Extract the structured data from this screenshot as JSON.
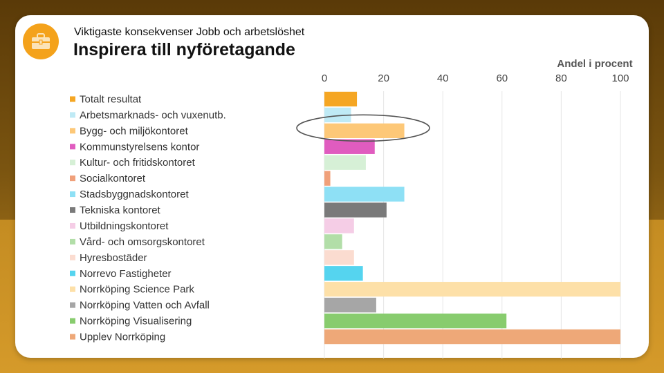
{
  "header": {
    "subtitle": "Viktigaste konsekvenser Jobb och arbetslöshet",
    "title": "Inspirera till nyföretagande",
    "badge_icon": "briefcase-icon"
  },
  "colors": {
    "badge": "#f4a21b",
    "highlight_ellipse": "#555555",
    "gridline": "#e6e6e6"
  },
  "chart_data": {
    "type": "bar",
    "orientation": "horizontal",
    "title": "Inspirera till nyföretagande",
    "xlabel": "Andel i procent",
    "ylabel": "",
    "xlim": [
      0,
      100
    ],
    "xticks": [
      0,
      20,
      40,
      60,
      80,
      100
    ],
    "grid": true,
    "legend_position": "left",
    "highlighted_category": "Bygg- och miljökontoret",
    "categories": [
      "Totalt resultat",
      "Arbetsmarknads- och vuxenutb.",
      "Bygg- och miljökontoret",
      "Kommunstyrelsens kontor",
      "Kultur- och fritidskontoret",
      "Socialkontoret",
      "Stadsbyggnadskontoret",
      "Tekniska kontoret",
      "Utbildningskontoret",
      "Vård- och omsorgskontoret",
      "Hyresbostäder",
      "Norrevo Fastigheter",
      "Norrköping Science Park",
      "Norrköping Vatten och Avfall",
      "Norrköping Visualisering",
      "Upplev Norrköping"
    ],
    "values": [
      11,
      9,
      27,
      17,
      14,
      2,
      27,
      21,
      10,
      6,
      10,
      13,
      100,
      17.5,
      61.5,
      100
    ],
    "bar_colors": [
      "#f5a623",
      "#bfeaf5",
      "#fdc878",
      "#e05cbf",
      "#d6f0d6",
      "#f0a07a",
      "#8ee0f5",
      "#7a7a7a",
      "#f5cde6",
      "#b2dea8",
      "#fbdcd0",
      "#55d4ef",
      "#fde0a8",
      "#a6a6a6",
      "#88cc6e",
      "#eea878"
    ]
  }
}
